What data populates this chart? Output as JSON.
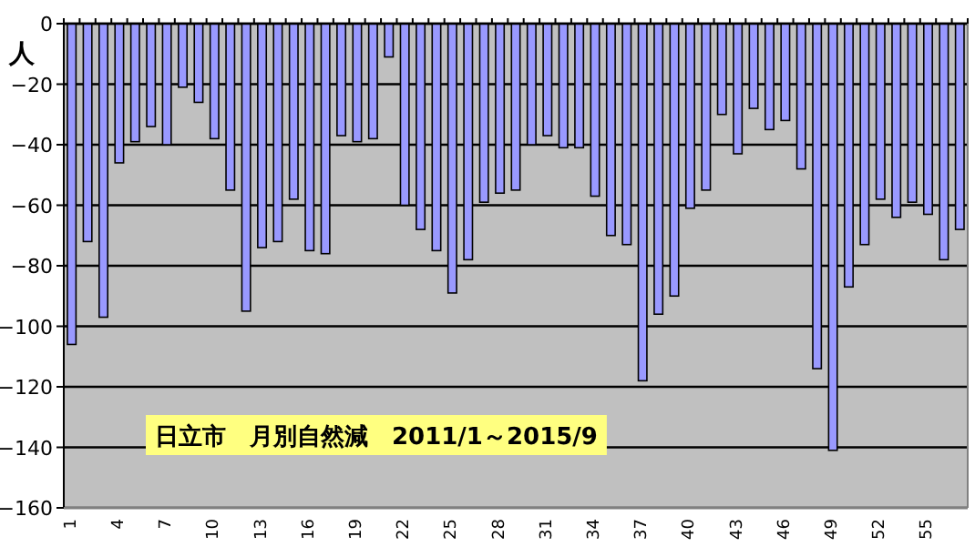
{
  "chart_data": {
    "type": "bar",
    "title": "日立市　月別自然減　2011/1～2015/9",
    "ylabel": "人",
    "categories": [
      "1",
      null,
      null,
      "4",
      null,
      null,
      "7",
      null,
      null,
      "10",
      null,
      null,
      "13",
      null,
      null,
      "16",
      null,
      null,
      "19",
      null,
      null,
      "22",
      null,
      null,
      "25",
      null,
      null,
      "28",
      null,
      null,
      "31",
      null,
      null,
      "34",
      null,
      null,
      "37",
      null,
      null,
      "40",
      null,
      null,
      "43",
      null,
      null,
      "46",
      null,
      null,
      "49",
      null,
      null,
      "52",
      null,
      null,
      "55",
      null,
      null
    ],
    "series": [
      {
        "color": "#9999ff",
        "values": [
          -106,
          -72,
          -97,
          -46,
          -39,
          -34,
          -40,
          -21,
          -26,
          -38,
          -55,
          -95,
          -74,
          -72,
          -58,
          -75,
          -76,
          -37,
          -39,
          -38,
          -11,
          -60,
          -68,
          -75,
          -89,
          -78,
          -59,
          -56,
          -55,
          -40,
          -37,
          -41,
          -41,
          -57,
          -70,
          -73,
          -118,
          -96,
          -90,
          -61,
          -55,
          -30,
          -43,
          -28,
          -35,
          -32,
          -48,
          -114,
          -141,
          -87,
          -73,
          -58,
          -64,
          -59,
          -63,
          -78,
          -68
        ]
      }
    ],
    "ylim": [
      -160,
      0
    ],
    "yticks": [
      -160,
      -140,
      -120,
      -100,
      -80,
      -60,
      -40,
      -20,
      0
    ],
    "grid": "y"
  }
}
